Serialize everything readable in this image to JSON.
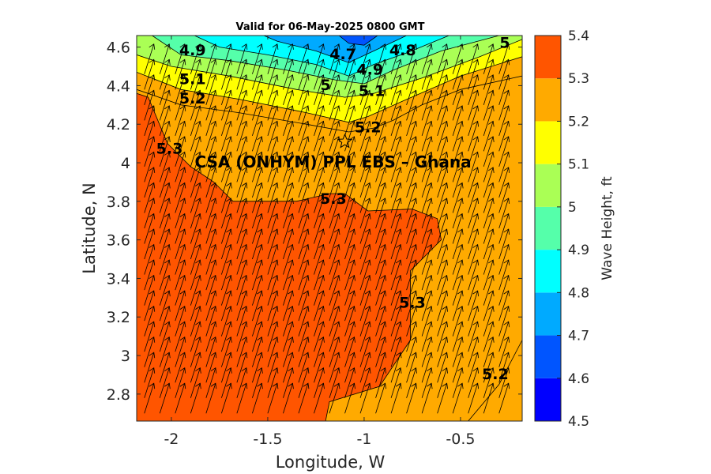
{
  "chart_data": {
    "type": "contour",
    "title": "Valid for 06-May-2025 0800 GMT",
    "xlabel": "Longitude, W",
    "ylabel": "Latitude, N",
    "xlim": [
      -2.18,
      -0.18
    ],
    "ylim": [
      2.66,
      4.66
    ],
    "xticks": [
      -2,
      -1.5,
      -1,
      -0.5
    ],
    "xtick_labels": [
      "-2",
      "-1.5",
      "-1",
      "-0.5"
    ],
    "yticks": [
      2.8,
      3,
      3.2,
      3.4,
      3.6,
      3.8,
      4,
      4.2,
      4.4,
      4.6
    ],
    "ytick_labels": [
      "2.8",
      "3",
      "3.2",
      "3.4",
      "3.6",
      "3.8",
      "4",
      "4.2",
      "4.4",
      "4.6"
    ],
    "colorbar": {
      "label": "Wave Height, ft",
      "levels": [
        4.5,
        4.6,
        4.7,
        4.8,
        4.9,
        5.0,
        5.1,
        5.2,
        5.3,
        5.4
      ],
      "level_labels": [
        "4.5",
        "4.6",
        "4.7",
        "4.8",
        "4.9",
        "5",
        "5.1",
        "5.2",
        "5.3",
        "5.4"
      ],
      "colors": [
        "#0000ff",
        "#0055ff",
        "#00aaff",
        "#00ffff",
        "#55ffaa",
        "#aaff55",
        "#ffff00",
        "#ffaa00",
        "#ff5500"
      ]
    },
    "grid": false,
    "vectors": {
      "field": "wave direction",
      "uniform_direction": "north-north-east"
    },
    "regions": [
      {
        "level": 4.6,
        "points": [
          [
            -1.13,
            4.66
          ],
          [
            -0.93,
            4.66
          ],
          [
            -1.0,
            4.61
          ],
          [
            -1.08,
            4.62
          ]
        ]
      },
      {
        "level": 4.7,
        "points": [
          [
            -1.52,
            4.66
          ],
          [
            -0.78,
            4.66
          ],
          [
            -0.95,
            4.58
          ],
          [
            -1.08,
            4.52
          ],
          [
            -1.25,
            4.58
          ],
          [
            -1.45,
            4.63
          ]
        ]
      },
      {
        "level": 4.8,
        "points": [
          [
            -1.88,
            4.66
          ],
          [
            -0.56,
            4.66
          ],
          [
            -0.78,
            4.57
          ],
          [
            -0.95,
            4.51
          ],
          [
            -1.08,
            4.45
          ],
          [
            -1.25,
            4.51
          ],
          [
            -1.5,
            4.56
          ],
          [
            -1.75,
            4.6
          ]
        ]
      },
      {
        "level": 4.9,
        "points": [
          [
            -2.1,
            4.66
          ],
          [
            -0.3,
            4.66
          ],
          [
            -0.6,
            4.58
          ],
          [
            -0.85,
            4.48
          ],
          [
            -1.0,
            4.41
          ],
          [
            -1.15,
            4.43
          ],
          [
            -1.4,
            4.48
          ],
          [
            -1.7,
            4.53
          ],
          [
            -1.95,
            4.56
          ]
        ]
      },
      {
        "level": 5.0,
        "points": [
          [
            -2.18,
            4.66
          ],
          [
            -0.18,
            4.66
          ],
          [
            -0.18,
            4.64
          ],
          [
            -0.4,
            4.55
          ],
          [
            -0.7,
            4.44
          ],
          [
            -0.95,
            4.36
          ],
          [
            -1.1,
            4.34
          ],
          [
            -1.35,
            4.38
          ],
          [
            -1.7,
            4.45
          ],
          [
            -2.0,
            4.5
          ],
          [
            -2.18,
            4.56
          ]
        ]
      },
      {
        "level": 5.1,
        "points": [
          [
            -2.18,
            4.66
          ],
          [
            -0.18,
            4.66
          ],
          [
            -0.18,
            4.55
          ],
          [
            -0.5,
            4.45
          ],
          [
            -0.8,
            4.32
          ],
          [
            -0.98,
            4.24
          ],
          [
            -1.08,
            4.21
          ],
          [
            -1.3,
            4.26
          ],
          [
            -1.65,
            4.33
          ],
          [
            -1.95,
            4.38
          ],
          [
            -2.18,
            4.47
          ]
        ]
      },
      {
        "level": 5.2,
        "points": [
          [
            -2.18,
            4.66
          ],
          [
            -0.18,
            4.66
          ],
          [
            -0.18,
            4.45
          ],
          [
            -0.5,
            4.38
          ],
          [
            -0.7,
            4.3
          ],
          [
            -0.85,
            4.22
          ],
          [
            -0.95,
            4.18
          ],
          [
            -1.08,
            4.16
          ],
          [
            -1.3,
            4.2
          ],
          [
            -1.65,
            4.26
          ],
          [
            -1.95,
            4.3
          ],
          [
            -2.18,
            4.38
          ]
        ]
      },
      {
        "level": 5.3,
        "points": [
          [
            -2.18,
            4.36
          ],
          [
            -2.12,
            4.34
          ],
          [
            -2.02,
            4.1
          ],
          [
            -1.9,
            3.98
          ],
          [
            -1.78,
            3.9
          ],
          [
            -1.68,
            3.8
          ],
          [
            -1.35,
            3.8
          ],
          [
            -1.18,
            3.84
          ],
          [
            -1.1,
            3.84
          ],
          [
            -0.98,
            3.75
          ],
          [
            -0.75,
            3.76
          ],
          [
            -0.62,
            3.71
          ],
          [
            -0.6,
            3.6
          ],
          [
            -0.76,
            3.44
          ],
          [
            -0.76,
            3.08
          ],
          [
            -0.92,
            2.84
          ],
          [
            -1.18,
            2.76
          ],
          [
            -1.2,
            2.66
          ],
          [
            -2.18,
            2.66
          ]
        ]
      },
      {
        "level": 5.2,
        "points": [
          [
            -0.18,
            3.08
          ],
          [
            -0.18,
            2.66
          ],
          [
            -0.46,
            2.66
          ],
          [
            -0.3,
            2.85
          ]
        ]
      }
    ],
    "contour_labels": [
      {
        "text": "4.9",
        "lon": -1.89,
        "lat": 4.58
      },
      {
        "text": "4.7",
        "lon": -1.11,
        "lat": 4.56
      },
      {
        "text": "4.8",
        "lon": -0.8,
        "lat": 4.58
      },
      {
        "text": "5",
        "lon": -0.27,
        "lat": 4.62
      },
      {
        "text": "4.9",
        "lon": -0.97,
        "lat": 4.48
      },
      {
        "text": "5.1",
        "lon": -1.89,
        "lat": 4.43
      },
      {
        "text": "5",
        "lon": -1.2,
        "lat": 4.4
      },
      {
        "text": "5.1",
        "lon": -0.96,
        "lat": 4.37
      },
      {
        "text": "5.2",
        "lon": -1.89,
        "lat": 4.33
      },
      {
        "text": "5.2",
        "lon": -0.98,
        "lat": 4.18
      },
      {
        "text": "5.3",
        "lon": -2.01,
        "lat": 4.07
      },
      {
        "text": "5.3",
        "lon": -1.16,
        "lat": 3.81
      },
      {
        "text": "5.3",
        "lon": -0.75,
        "lat": 3.27
      },
      {
        "text": "5.2",
        "lon": -0.32,
        "lat": 2.9
      }
    ],
    "site": {
      "label": "CSA (ONHYM) PPL EBS  – Ghana",
      "lon": -1.1,
      "lat": 4.11,
      "marker": "star"
    }
  }
}
